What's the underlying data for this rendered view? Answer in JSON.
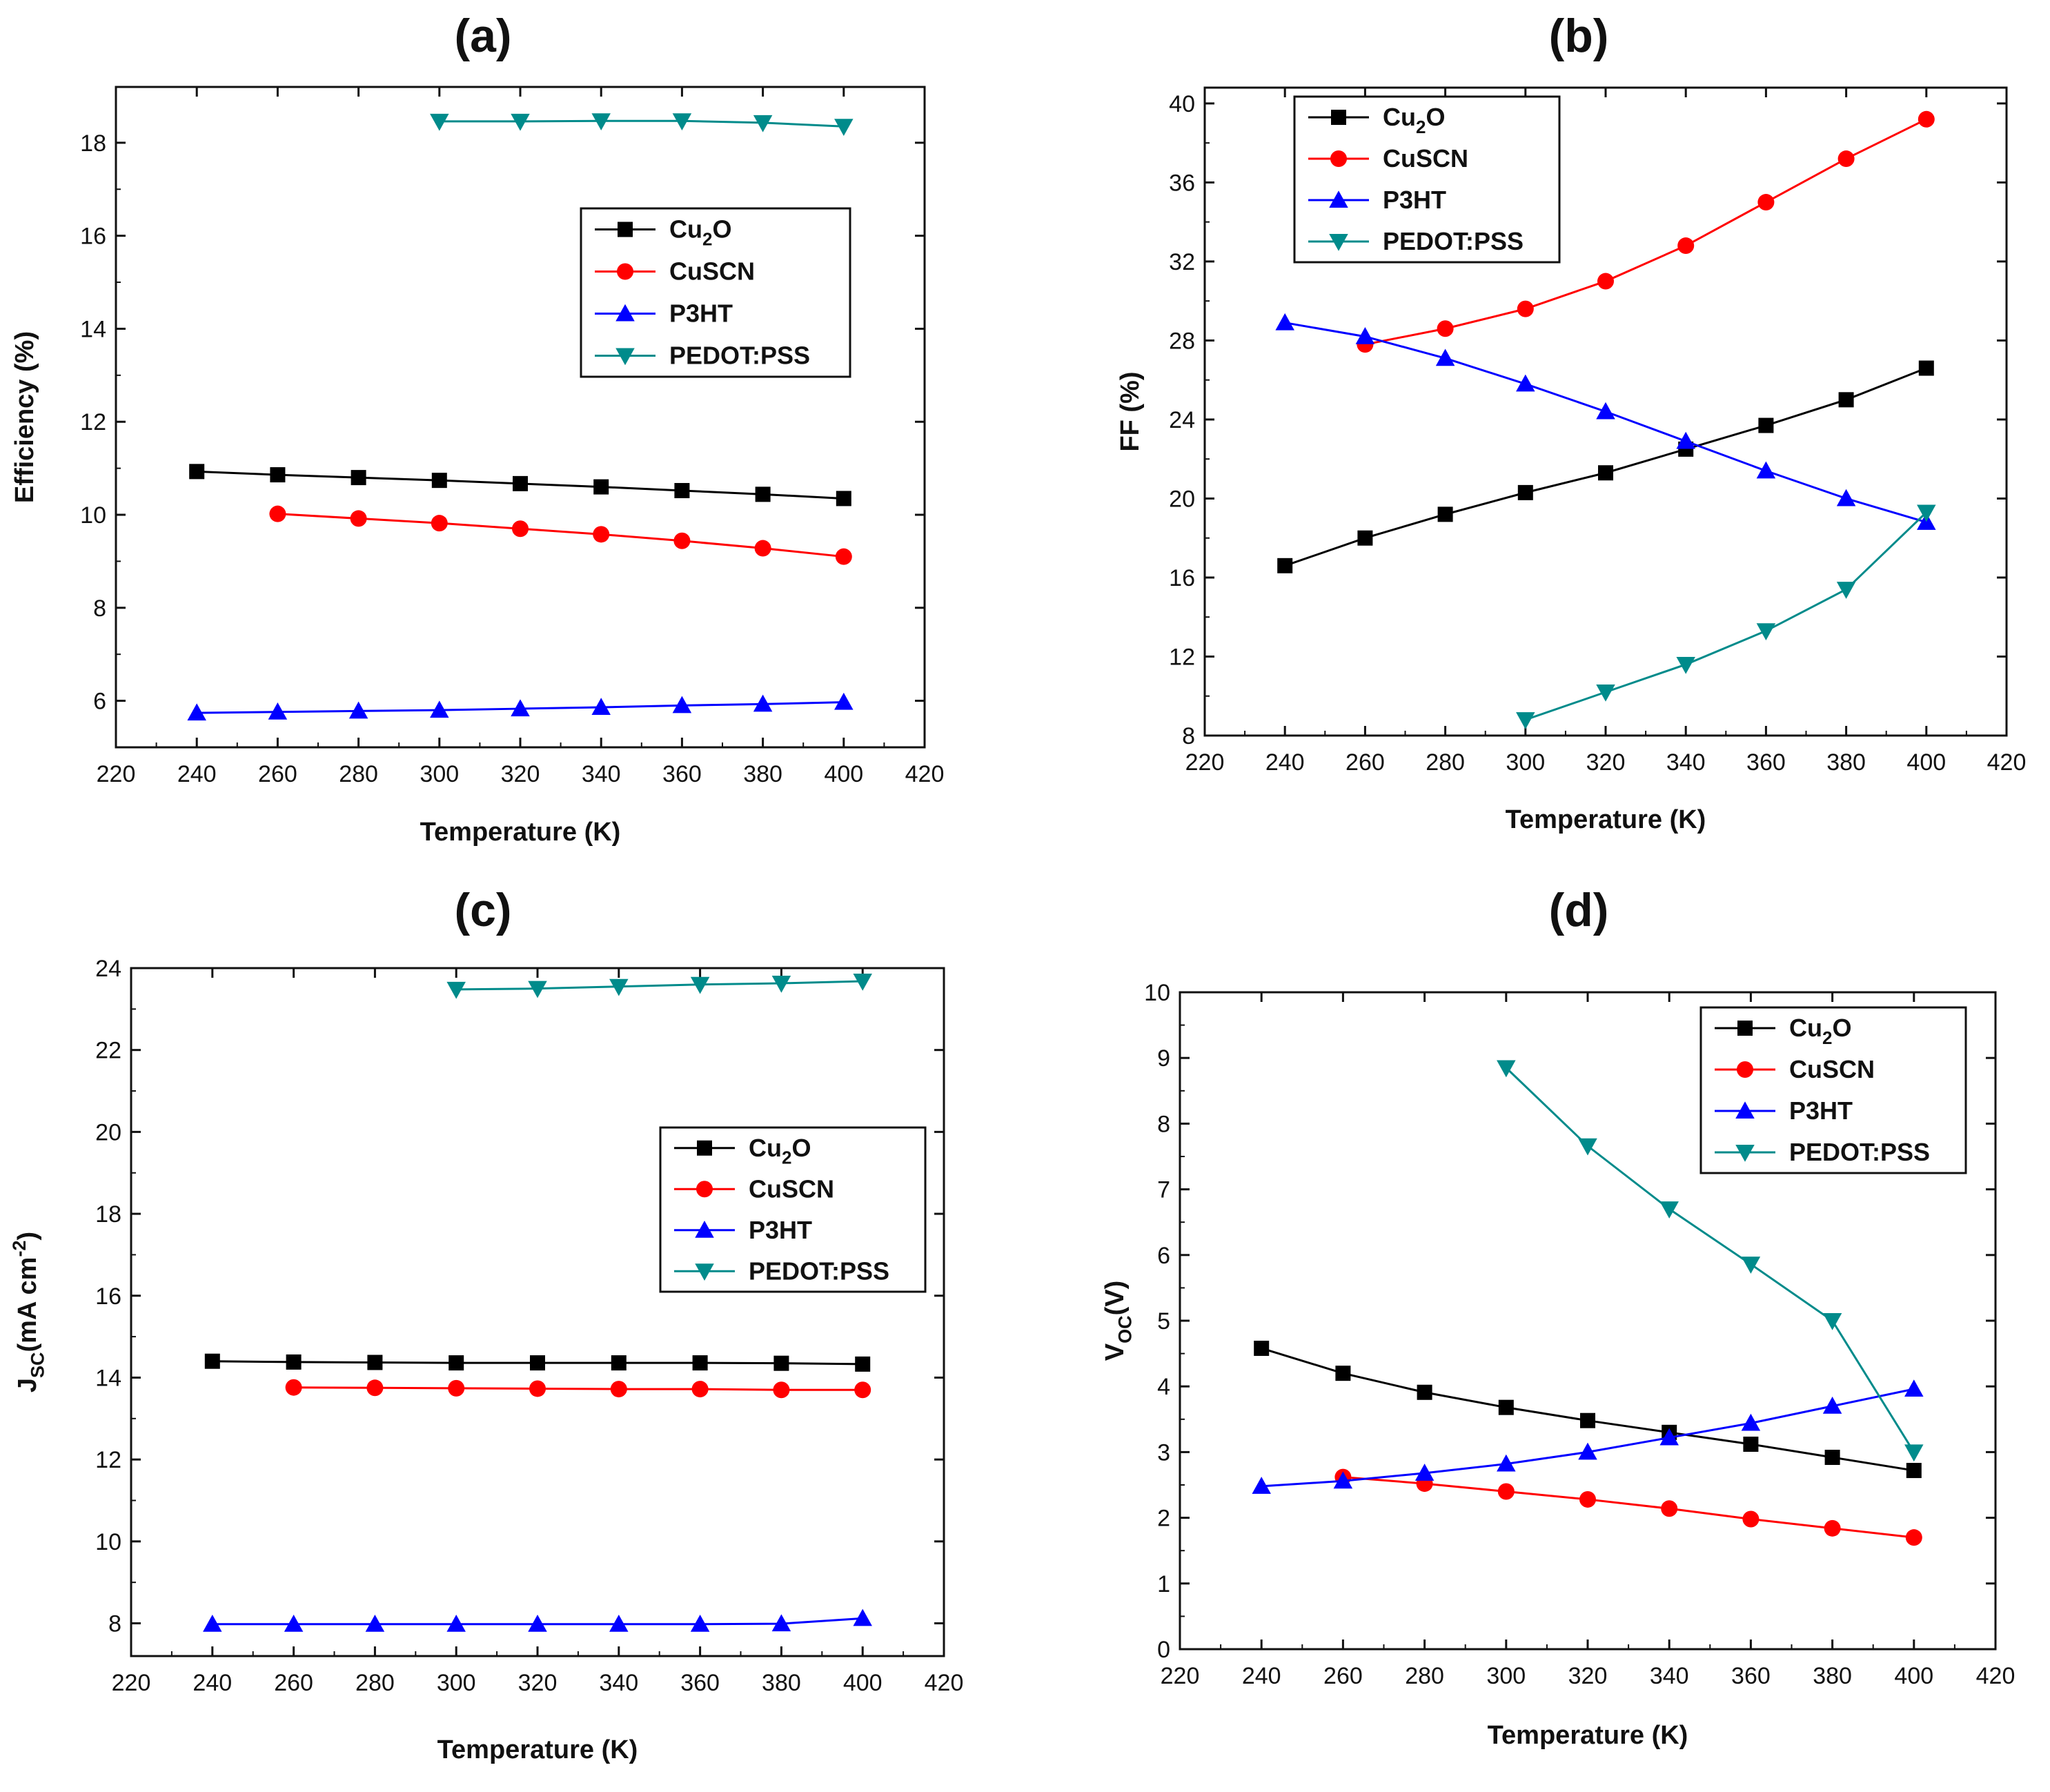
{
  "chart_data": [
    {
      "type": "line",
      "panel_label": "(a)",
      "xlabel": "Temperature (K)",
      "ylabel": "Efficiency (%)",
      "xlim": [
        220,
        420
      ],
      "ylim": [
        5,
        19.2
      ],
      "xticks": [
        220,
        240,
        260,
        280,
        300,
        320,
        340,
        360,
        380,
        400,
        420
      ],
      "yticks": [
        6,
        8,
        10,
        12,
        14,
        16,
        18
      ],
      "grid": false,
      "legend_position": "center-right",
      "series": [
        {
          "name": "Cu2O",
          "color": "#000000",
          "marker": "square",
          "x": [
            240,
            260,
            280,
            300,
            320,
            340,
            360,
            380,
            400
          ],
          "y": [
            10.93,
            10.86,
            10.8,
            10.74,
            10.67,
            10.6,
            10.52,
            10.44,
            10.35
          ]
        },
        {
          "name": "CuSCN",
          "color": "#ff0000",
          "marker": "circle",
          "x": [
            260,
            280,
            300,
            320,
            340,
            360,
            380,
            400
          ],
          "y": [
            10.02,
            9.92,
            9.82,
            9.7,
            9.58,
            9.44,
            9.28,
            9.1
          ]
        },
        {
          "name": "P3HT",
          "color": "#0000ff",
          "marker": "triangle-up",
          "x": [
            240,
            260,
            280,
            300,
            320,
            340,
            360,
            380,
            400
          ],
          "y": [
            5.74,
            5.76,
            5.78,
            5.8,
            5.83,
            5.86,
            5.9,
            5.93,
            5.97
          ]
        },
        {
          "name": "PEDOT:PSS",
          "color": "#008b8b",
          "marker": "triangle-down",
          "x": [
            300,
            320,
            340,
            360,
            380,
            400
          ],
          "y": [
            18.46,
            18.46,
            18.47,
            18.47,
            18.43,
            18.35
          ]
        }
      ]
    },
    {
      "type": "line",
      "panel_label": "(b)",
      "xlabel": "Temperature (K)",
      "ylabel": "FF (%)",
      "xlim": [
        220,
        420
      ],
      "ylim": [
        8,
        40.8
      ],
      "xticks": [
        220,
        240,
        260,
        280,
        300,
        320,
        340,
        360,
        380,
        400,
        420
      ],
      "yticks": [
        8,
        12,
        16,
        20,
        24,
        28,
        32,
        36,
        40
      ],
      "grid": false,
      "legend_position": "top-left",
      "series": [
        {
          "name": "Cu2O",
          "color": "#000000",
          "marker": "square",
          "x": [
            240,
            260,
            280,
            300,
            320,
            340,
            360,
            380,
            400
          ],
          "y": [
            16.6,
            18.0,
            19.2,
            20.3,
            21.3,
            22.5,
            23.7,
            25.0,
            26.6
          ]
        },
        {
          "name": "CuSCN",
          "color": "#ff0000",
          "marker": "circle",
          "x": [
            260,
            280,
            300,
            320,
            340,
            360,
            380,
            400
          ],
          "y": [
            27.8,
            28.6,
            29.6,
            31.0,
            32.8,
            35.0,
            37.2,
            39.2
          ]
        },
        {
          "name": "P3HT",
          "color": "#0000ff",
          "marker": "triangle-up",
          "x": [
            240,
            260,
            280,
            300,
            320,
            340,
            360,
            380,
            400
          ],
          "y": [
            28.9,
            28.2,
            27.1,
            25.8,
            24.4,
            22.9,
            21.4,
            20.0,
            18.8
          ]
        },
        {
          "name": "PEDOT:PSS",
          "color": "#008b8b",
          "marker": "triangle-down",
          "x": [
            300,
            320,
            340,
            360,
            380,
            400
          ],
          "y": [
            8.8,
            10.2,
            11.6,
            13.3,
            15.4,
            19.3
          ]
        }
      ]
    },
    {
      "type": "line",
      "panel_label": "(c)",
      "xlabel": "Temperature (K)",
      "ylabel": "JSC(mA cm-2)",
      "xlim": [
        220,
        420
      ],
      "ylim": [
        7.2,
        24
      ],
      "xticks": [
        220,
        240,
        260,
        280,
        300,
        320,
        340,
        360,
        380,
        400,
        420
      ],
      "yticks": [
        8,
        10,
        12,
        14,
        16,
        18,
        20,
        22,
        24
      ],
      "grid": false,
      "legend_position": "center-right",
      "series": [
        {
          "name": "Cu2O",
          "color": "#000000",
          "marker": "square",
          "x": [
            240,
            260,
            280,
            300,
            320,
            340,
            360,
            380,
            400
          ],
          "y": [
            14.4,
            14.38,
            14.37,
            14.36,
            14.36,
            14.36,
            14.36,
            14.35,
            14.33
          ]
        },
        {
          "name": "CuSCN",
          "color": "#ff0000",
          "marker": "circle",
          "x": [
            260,
            280,
            300,
            320,
            340,
            360,
            380,
            400
          ],
          "y": [
            13.76,
            13.75,
            13.74,
            13.73,
            13.72,
            13.72,
            13.7,
            13.7
          ]
        },
        {
          "name": "P3HT",
          "color": "#0000ff",
          "marker": "triangle-up",
          "x": [
            240,
            260,
            280,
            300,
            320,
            340,
            360,
            380,
            400
          ],
          "y": [
            7.98,
            7.98,
            7.98,
            7.98,
            7.98,
            7.98,
            7.98,
            7.99,
            8.12
          ]
        },
        {
          "name": "PEDOT:PSS",
          "color": "#008b8b",
          "marker": "triangle-down",
          "x": [
            300,
            320,
            340,
            360,
            380,
            400
          ],
          "y": [
            23.48,
            23.5,
            23.55,
            23.6,
            23.63,
            23.68
          ]
        }
      ]
    },
    {
      "type": "line",
      "panel_label": "(d)",
      "xlabel": "Temperature (K)",
      "ylabel": "VOC(V)",
      "xlim": [
        220,
        420
      ],
      "ylim": [
        0,
        10
      ],
      "xticks": [
        220,
        240,
        260,
        280,
        300,
        320,
        340,
        360,
        380,
        400,
        420
      ],
      "yticks": [
        0,
        1,
        2,
        3,
        4,
        5,
        6,
        7,
        8,
        9,
        10
      ],
      "grid": false,
      "legend_position": "top-right",
      "series": [
        {
          "name": "Cu2O",
          "color": "#000000",
          "marker": "square",
          "x": [
            240,
            260,
            280,
            300,
            320,
            340,
            360,
            380,
            400
          ],
          "y": [
            4.58,
            4.2,
            3.91,
            3.68,
            3.48,
            3.3,
            3.12,
            2.92,
            2.72
          ]
        },
        {
          "name": "CuSCN",
          "color": "#ff0000",
          "marker": "circle",
          "x": [
            260,
            280,
            300,
            320,
            340,
            360,
            380,
            400
          ],
          "y": [
            2.62,
            2.52,
            2.4,
            2.28,
            2.14,
            1.98,
            1.84,
            1.7
          ]
        },
        {
          "name": "P3HT",
          "color": "#0000ff",
          "marker": "triangle-up",
          "x": [
            240,
            260,
            280,
            300,
            320,
            340,
            360,
            380,
            400
          ],
          "y": [
            2.48,
            2.56,
            2.68,
            2.82,
            3.0,
            3.22,
            3.44,
            3.7,
            3.96
          ]
        },
        {
          "name": "PEDOT:PSS",
          "color": "#008b8b",
          "marker": "triangle-down",
          "x": [
            300,
            320,
            340,
            360,
            380,
            400
          ],
          "y": [
            8.85,
            7.66,
            6.7,
            5.86,
            5.0,
            3.0
          ]
        }
      ]
    }
  ]
}
